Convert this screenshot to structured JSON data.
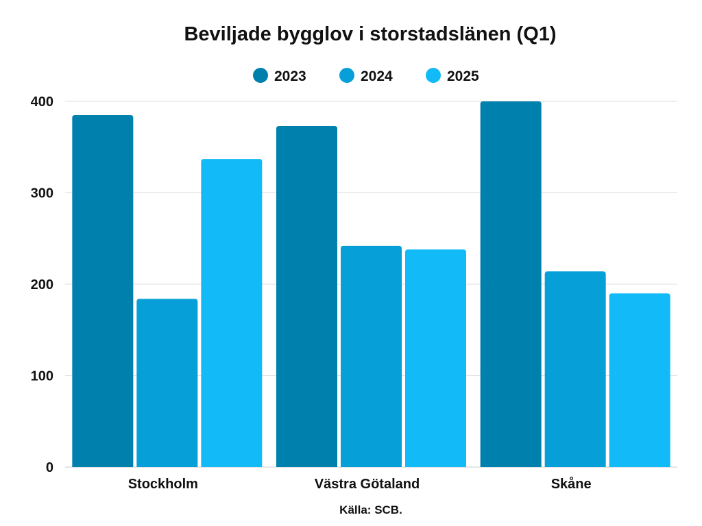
{
  "chart_data": {
    "type": "bar",
    "title": "Beviljade bygglov i storstadslänen (Q1)",
    "categories": [
      "Stockholm",
      "Västra Götaland",
      "Skåne"
    ],
    "series": [
      {
        "name": "2023",
        "color": "#0080AD",
        "values": [
          385,
          373,
          400
        ]
      },
      {
        "name": "2024",
        "color": "#069FD8",
        "values": [
          184,
          242,
          214
        ]
      },
      {
        "name": "2025",
        "color": "#12BBF7",
        "values": [
          337,
          238,
          190
        ]
      }
    ],
    "yticks": [
      0,
      100,
      200,
      300,
      400
    ],
    "ylim": [
      0,
      400
    ],
    "grid": true,
    "legend_position": "top-center",
    "source": "Källa: SCB."
  }
}
